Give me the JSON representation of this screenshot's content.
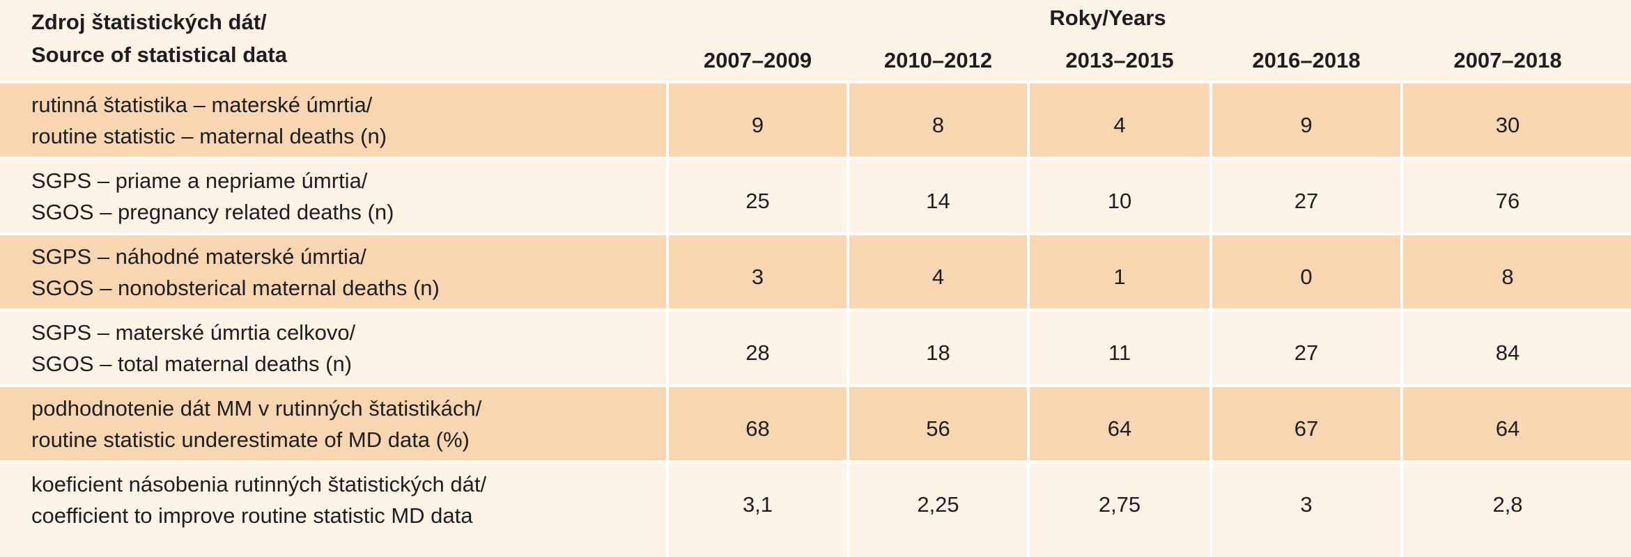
{
  "header": {
    "source_label": "Zdroj štatistických dát/\nSource of statistical data",
    "years_label": "Roky/Years",
    "columns": [
      "2007–2009",
      "2010–2012",
      "2013–2015",
      "2016–2018",
      "2007–2018"
    ]
  },
  "rows": [
    {
      "label": "rutinná štatistika – materské úmrtia/\nroutine statistic – maternal deaths (n)",
      "values": [
        "9",
        "8",
        "4",
        "9",
        "30"
      ]
    },
    {
      "label": "SGPS – priame a nepriame úmrtia/\nSGOS – pregnancy related deaths (n)",
      "values": [
        "25",
        "14",
        "10",
        "27",
        "76"
      ]
    },
    {
      "label": "SGPS – náhodné materské úmrtia/\nSGOS – nonobsterical maternal deaths (n)",
      "values": [
        "3",
        "4",
        "1",
        "0",
        "8"
      ]
    },
    {
      "label": "SGPS – materské úmrtia celkovo/\nSGOS – total maternal deaths (n)",
      "values": [
        "28",
        "18",
        "11",
        "27",
        "84"
      ]
    },
    {
      "label": "podhodnotenie dát MM v rutinných štatistikách/\nroutine statistic underestimate of MD data (%)",
      "values": [
        "68",
        "56",
        "64",
        "67",
        "64"
      ]
    },
    {
      "label": "koeficient násobenia rutinných štatistických dát/\ncoefficient to improve routine statistic MD data",
      "values": [
        "3,1",
        "2,25",
        "2,75",
        "3",
        "2,8"
      ]
    }
  ],
  "colors": {
    "shaded_row": "#f8d6b2",
    "plain_row": "#fdf3e7",
    "divider": "#ffffff"
  }
}
